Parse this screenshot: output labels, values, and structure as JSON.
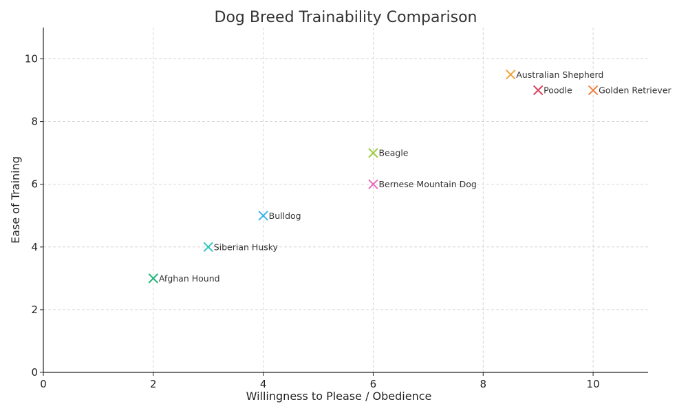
{
  "chart_data": {
    "type": "scatter",
    "title": "Dog Breed Trainability Comparison",
    "xlabel": "Willingness to Please / Obedience",
    "ylabel": "Ease of Training",
    "xlim": [
      0,
      11
    ],
    "ylim": [
      0,
      11
    ],
    "xticks": [
      0,
      2,
      4,
      6,
      8,
      10
    ],
    "yticks": [
      0,
      2,
      4,
      6,
      8,
      10
    ],
    "grid": true,
    "marker": "x",
    "points": [
      {
        "label": "Golden Retriever",
        "x": 10,
        "y": 9,
        "color": "#ee7f3a"
      },
      {
        "label": "Poodle",
        "x": 9,
        "y": 9,
        "color": "#dc3a57"
      },
      {
        "label": "Australian Shepherd",
        "x": 8.5,
        "y": 9.5,
        "color": "#f0a43a"
      },
      {
        "label": "Beagle",
        "x": 6,
        "y": 7,
        "color": "#9acb3a"
      },
      {
        "label": "Bernese Mountain Dog",
        "x": 6,
        "y": 6,
        "color": "#e76bbf"
      },
      {
        "label": "Bulldog",
        "x": 4,
        "y": 5,
        "color": "#3ab3e8"
      },
      {
        "label": "Siberian Husky",
        "x": 3,
        "y": 4,
        "color": "#2ac7c0"
      },
      {
        "label": "Afghan Hound",
        "x": 2,
        "y": 3,
        "color": "#22b77a"
      }
    ]
  }
}
